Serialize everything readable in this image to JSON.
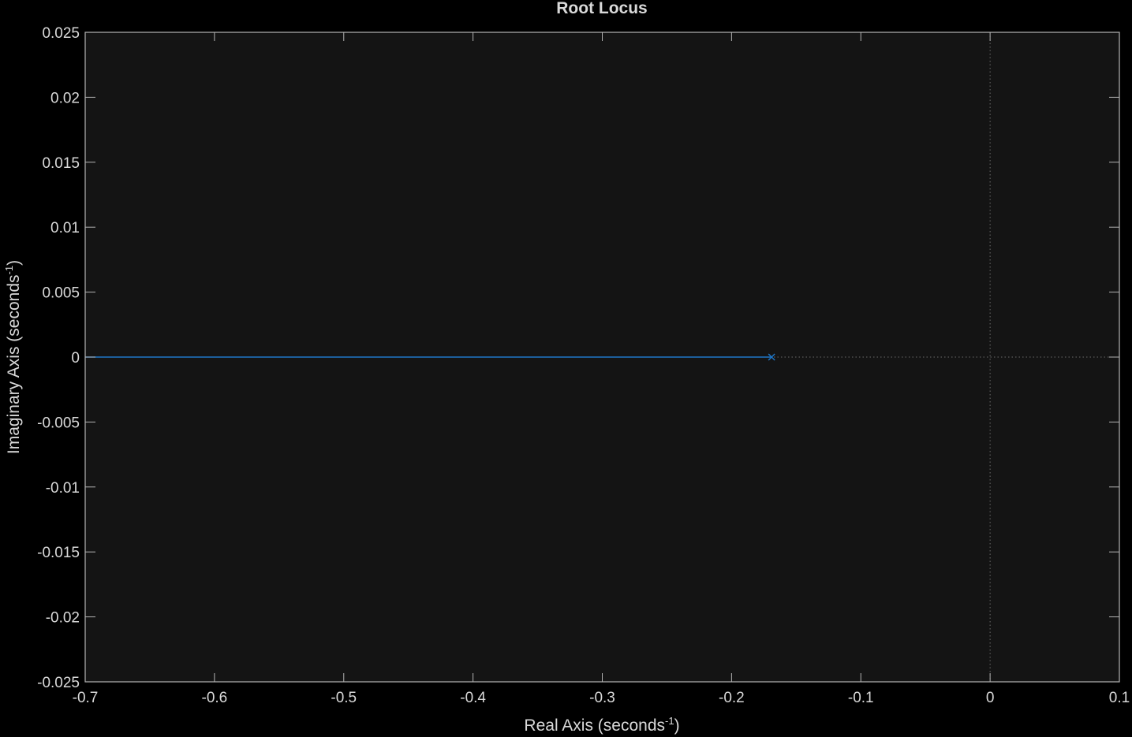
{
  "chart_data": {
    "type": "line",
    "title": "Root Locus",
    "xlabel": {
      "main": "Real  Axis  (seconds",
      "exp": "-1",
      "close": ")"
    },
    "ylabel": {
      "main": "Imaginary  Axis  (seconds",
      "exp": "-1",
      "close": ")"
    },
    "xlim": [
      -0.7,
      0.1
    ],
    "ylim": [
      -0.025,
      0.025
    ],
    "xticks": [
      -0.7,
      -0.6,
      -0.5,
      -0.4,
      -0.3,
      -0.2,
      -0.1,
      0,
      0.1
    ],
    "xtick_labels": [
      "-0.7",
      "-0.6",
      "-0.5",
      "-0.4",
      "-0.3",
      "-0.2",
      "-0.1",
      "0",
      "0.1"
    ],
    "yticks": [
      0.025,
      0.02,
      0.015,
      0.01,
      0.005,
      0,
      -0.005,
      -0.01,
      -0.015,
      -0.02,
      -0.025
    ],
    "ytick_labels": [
      "0.025",
      "0.02",
      "0.015",
      "0.01",
      "0.005",
      "0",
      "-0.005",
      "-0.01",
      "-0.015",
      "-0.02",
      "-0.025"
    ],
    "series": [
      {
        "x": [
          -0.7,
          -0.169
        ],
        "y": [
          0,
          0
        ]
      }
    ],
    "poles": [
      {
        "x": -0.169,
        "y": 0
      }
    ],
    "grid": false,
    "colors": {
      "background": "#000000",
      "plot_area": "#141414",
      "axes": "#b3b3b3",
      "text": "#d9d9d9",
      "locus": "#1f77c8",
      "reference_lines": "#6a6a6a"
    }
  }
}
